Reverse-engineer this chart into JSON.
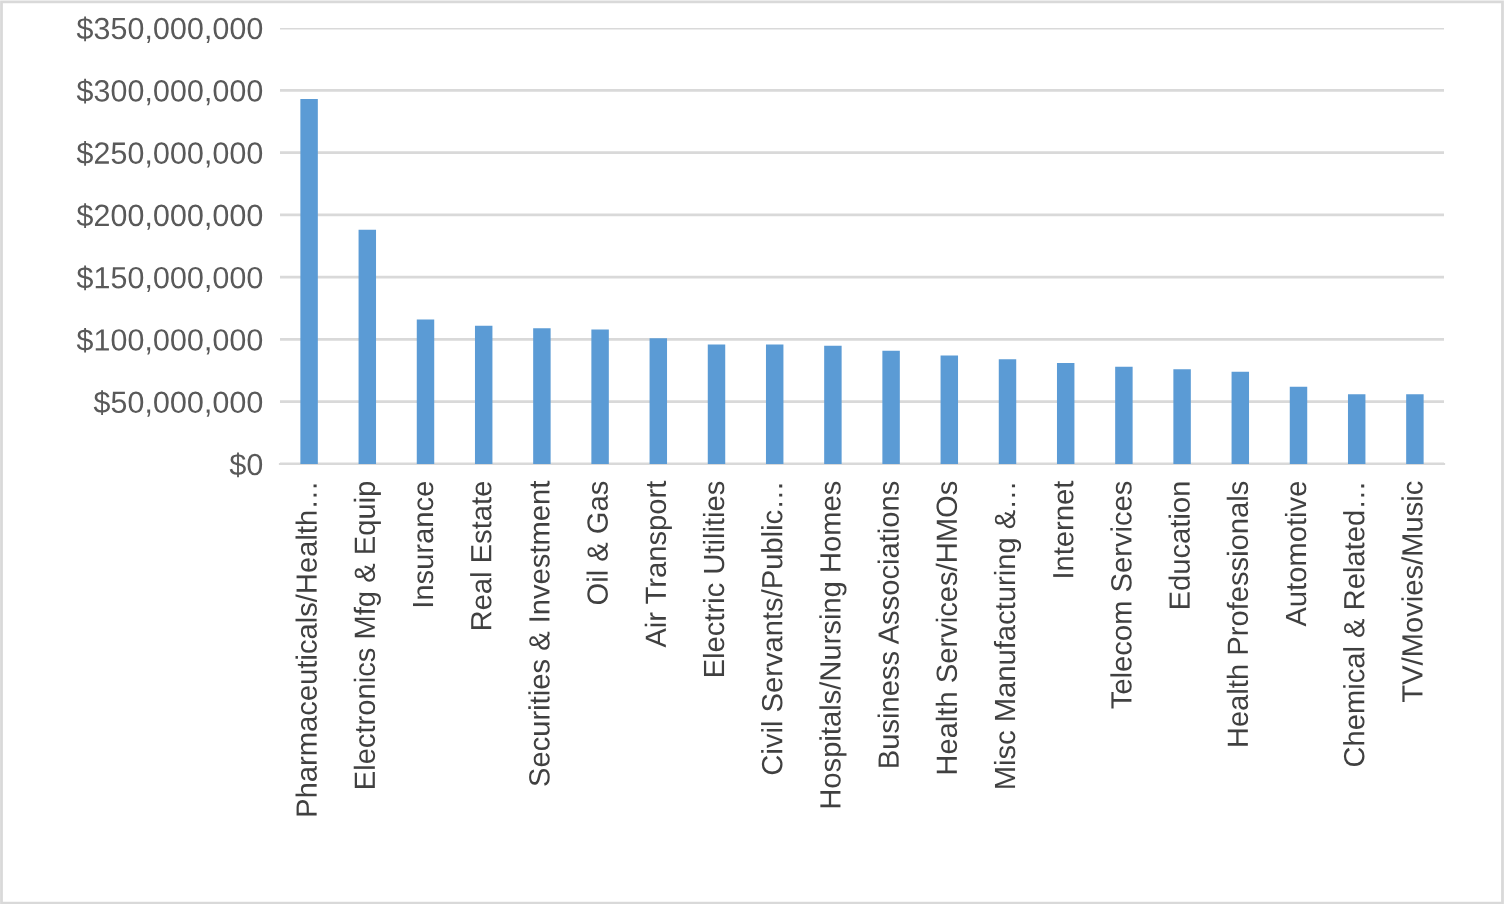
{
  "chart_data": {
    "type": "bar",
    "categories": [
      "Pharmaceuticals/Health…",
      "Electronics Mfg & Equip",
      "Insurance",
      "Real Estate",
      "Securities & Investment",
      "Oil & Gas",
      "Air Transport",
      "Electric Utilities",
      "Civil Servants/Public…",
      "Hospitals/Nursing Homes",
      "Business Associations",
      "Health Services/HMOs",
      "Misc Manufacturing &…",
      "Internet",
      "Telecom Services",
      "Education",
      "Health Professionals",
      "Automotive",
      "Chemical & Related…",
      "TV/Movies/Music"
    ],
    "values": [
      293000000,
      188000000,
      116000000,
      111000000,
      109000000,
      108000000,
      101000000,
      96000000,
      96000000,
      95000000,
      91000000,
      87000000,
      84000000,
      81000000,
      78000000,
      76000000,
      74000000,
      62000000,
      56000000,
      56000000
    ],
    "color": "#5b9bd5",
    "ylim": [
      0,
      350000000
    ],
    "yticks": [
      {
        "value": 0,
        "label": "$0"
      },
      {
        "value": 50000000,
        "label": "$50,000,000"
      },
      {
        "value": 100000000,
        "label": "$100,000,000"
      },
      {
        "value": 150000000,
        "label": "$150,000,000"
      },
      {
        "value": 200000000,
        "label": "$200,000,000"
      },
      {
        "value": 250000000,
        "label": "$250,000,000"
      },
      {
        "value": 300000000,
        "label": "$300,000,000"
      },
      {
        "value": 350000000,
        "label": "$350,000,000"
      }
    ],
    "grid": "y"
  }
}
